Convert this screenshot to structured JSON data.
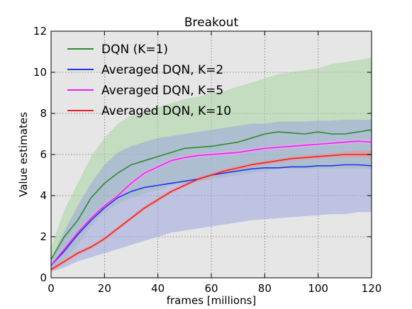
{
  "chart_data": {
    "type": "line",
    "title": "Breakout",
    "xlabel": "frames [millions]",
    "ylabel": "Value estimates",
    "xlim": [
      0,
      120
    ],
    "ylim": [
      0,
      12
    ],
    "xticks": [
      "0",
      "20",
      "40",
      "60",
      "80",
      "100",
      "120"
    ],
    "yticks": [
      "0",
      "2",
      "4",
      "6",
      "8",
      "10",
      "12"
    ],
    "grid": true,
    "legend_position": "top-left",
    "background_color": "#e6e6e6",
    "x": [
      0,
      5,
      10,
      15,
      20,
      25,
      30,
      35,
      40,
      45,
      50,
      55,
      60,
      65,
      70,
      75,
      80,
      85,
      90,
      95,
      100,
      105,
      110,
      115,
      120
    ],
    "series": [
      {
        "name": "DQN (K=1)",
        "color": "#2e8b2e",
        "band_color": "#a8d3a0",
        "values": [
          0.9,
          2.0,
          2.8,
          3.9,
          4.6,
          5.1,
          5.5,
          5.7,
          5.9,
          6.1,
          6.3,
          6.35,
          6.4,
          6.5,
          6.6,
          6.8,
          7.0,
          7.1,
          7.05,
          7.0,
          7.1,
          7.0,
          7.0,
          7.1,
          7.2
        ],
        "lower": [
          0.4,
          0.9,
          1.6,
          2.5,
          3.2,
          3.6,
          3.9,
          4.1,
          4.3,
          4.5,
          4.6,
          4.7,
          4.8,
          4.9,
          5.0,
          5.1,
          5.2,
          5.3,
          5.3,
          5.3,
          5.3,
          5.3,
          5.3,
          5.3,
          5.3
        ],
        "upper": [
          1.5,
          3.3,
          4.6,
          5.9,
          6.8,
          7.5,
          7.9,
          8.1,
          8.3,
          8.5,
          8.7,
          8.8,
          9.0,
          9.1,
          9.3,
          9.5,
          9.7,
          9.9,
          10.0,
          10.1,
          10.2,
          10.4,
          10.5,
          10.6,
          10.7
        ]
      },
      {
        "name": "Averaged DQN, K=2",
        "color": "#2233ee",
        "band_color": "#9aa6dc",
        "values": [
          0.6,
          1.3,
          2.1,
          2.8,
          3.4,
          3.9,
          4.2,
          4.4,
          4.5,
          4.6,
          4.7,
          4.8,
          5.0,
          5.1,
          5.2,
          5.3,
          5.35,
          5.35,
          5.4,
          5.4,
          5.45,
          5.45,
          5.5,
          5.5,
          5.45
        ],
        "lower": [
          0.3,
          0.5,
          0.8,
          1.0,
          1.2,
          1.4,
          1.6,
          1.8,
          2.0,
          2.2,
          2.3,
          2.4,
          2.5,
          2.6,
          2.7,
          2.8,
          2.85,
          2.9,
          2.95,
          3.0,
          3.05,
          3.1,
          3.1,
          3.2,
          3.2
        ],
        "upper": [
          0.9,
          2.3,
          3.5,
          4.6,
          5.5,
          6.1,
          6.4,
          6.6,
          6.8,
          6.9,
          7.0,
          7.1,
          7.2,
          7.3,
          7.4,
          7.5,
          7.5,
          7.6,
          7.6,
          7.6,
          7.65,
          7.65,
          7.7,
          7.7,
          7.7
        ]
      },
      {
        "name": "Averaged DQN, K=5",
        "color": "#ee22ee",
        "band_color": "#f3a6f3",
        "values": [
          0.6,
          1.4,
          2.2,
          2.9,
          3.5,
          4.0,
          4.6,
          5.1,
          5.4,
          5.7,
          5.85,
          5.95,
          6.0,
          6.05,
          6.1,
          6.2,
          6.3,
          6.35,
          6.4,
          6.45,
          6.5,
          6.55,
          6.6,
          6.65,
          6.6
        ],
        "lower": [
          0.5,
          1.3,
          2.1,
          2.8,
          3.4,
          3.9,
          4.5,
          5.0,
          5.3,
          5.6,
          5.75,
          5.85,
          5.9,
          5.95,
          6.0,
          6.1,
          6.2,
          6.25,
          6.3,
          6.35,
          6.4,
          6.45,
          6.5,
          6.55,
          6.5
        ],
        "upper": [
          0.7,
          1.5,
          2.3,
          3.0,
          3.6,
          4.1,
          4.7,
          5.2,
          5.5,
          5.8,
          5.95,
          6.05,
          6.1,
          6.15,
          6.2,
          6.3,
          6.4,
          6.45,
          6.5,
          6.55,
          6.6,
          6.65,
          6.7,
          6.75,
          6.75
        ]
      },
      {
        "name": "Averaged DQN, K=10",
        "color": "#ee2222",
        "band_color": "#f09090",
        "values": [
          0.4,
          0.8,
          1.2,
          1.5,
          1.9,
          2.4,
          2.9,
          3.4,
          3.8,
          4.2,
          4.5,
          4.8,
          5.0,
          5.2,
          5.35,
          5.5,
          5.6,
          5.7,
          5.8,
          5.85,
          5.9,
          5.95,
          6.0,
          6.0,
          6.0
        ],
        "lower": [
          0.3,
          0.7,
          1.1,
          1.4,
          1.8,
          2.3,
          2.8,
          3.3,
          3.7,
          4.1,
          4.4,
          4.7,
          4.9,
          5.1,
          5.25,
          5.4,
          5.5,
          5.6,
          5.7,
          5.75,
          5.8,
          5.85,
          5.85,
          5.85,
          5.85
        ],
        "upper": [
          0.5,
          0.9,
          1.3,
          1.6,
          2.0,
          2.5,
          3.0,
          3.5,
          3.9,
          4.3,
          4.6,
          4.9,
          5.1,
          5.3,
          5.45,
          5.6,
          5.7,
          5.8,
          5.9,
          5.95,
          6.0,
          6.05,
          6.15,
          6.2,
          6.2
        ]
      }
    ]
  }
}
